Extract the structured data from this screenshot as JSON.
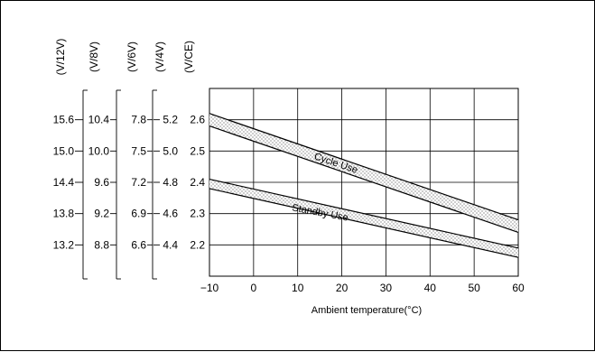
{
  "chart_data": {
    "type": "area",
    "xlabel": "Ambient temperature(°C)",
    "x_ticks": [
      "−10",
      "0",
      "10",
      "20",
      "30",
      "40",
      "50",
      "60"
    ],
    "xlim": [
      -10,
      60
    ],
    "ylim": [
      2.1,
      2.7
    ],
    "y_scales": [
      {
        "unit": "(V/12V)",
        "ticks": [
          "15.6",
          "15.0",
          "14.4",
          "13.8",
          "13.2"
        ]
      },
      {
        "unit": "(V/8V)",
        "ticks": [
          "10.4",
          "10.0",
          "9.6",
          "9.2",
          "8.8"
        ]
      },
      {
        "unit": "(V/6V)",
        "ticks": [
          "7.8",
          "7.5",
          "7.2",
          "6.9",
          "6.6"
        ]
      },
      {
        "unit": "(V/4V)",
        "ticks": [
          "5.2",
          "5.0",
          "4.8",
          "4.6",
          "4.4"
        ]
      },
      {
        "unit": "(V/CE)",
        "ticks": [
          "2.6",
          "2.5",
          "2.4",
          "2.3",
          "2.2"
        ]
      }
    ],
    "primary_y_values": [
      2.6,
      2.5,
      2.4,
      2.3,
      2.2
    ],
    "series": [
      {
        "name": "Cycle Use",
        "x": [
          -10,
          60
        ],
        "upper": [
          2.62,
          2.28
        ],
        "lower": [
          2.58,
          2.24
        ]
      },
      {
        "name": "Standby Use",
        "x": [
          -10,
          60
        ],
        "upper": [
          2.41,
          2.19
        ],
        "lower": [
          2.38,
          2.16
        ]
      }
    ],
    "grid": true
  }
}
